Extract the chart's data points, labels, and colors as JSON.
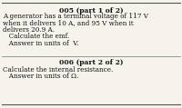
{
  "background_color": "#f5f3ec",
  "border_color": "#555555",
  "divider_color": "#888888",
  "title1": "005 (part 1 of 2)",
  "body1_lines": [
    "A generator has a terminal voltage of 117 V",
    "when it delivers 10 A, and 95 V when it",
    "delivers 20.9 A.",
    "   Calculate the emf.",
    "   Answer in units of  V."
  ],
  "title2": "006 (part 2 of 2)",
  "body2_lines": [
    "Calculate the internal resistance.",
    "   Answer in units of Ω."
  ],
  "title_fontsize": 5.5,
  "body_fontsize": 5.2,
  "text_color": "#111111"
}
